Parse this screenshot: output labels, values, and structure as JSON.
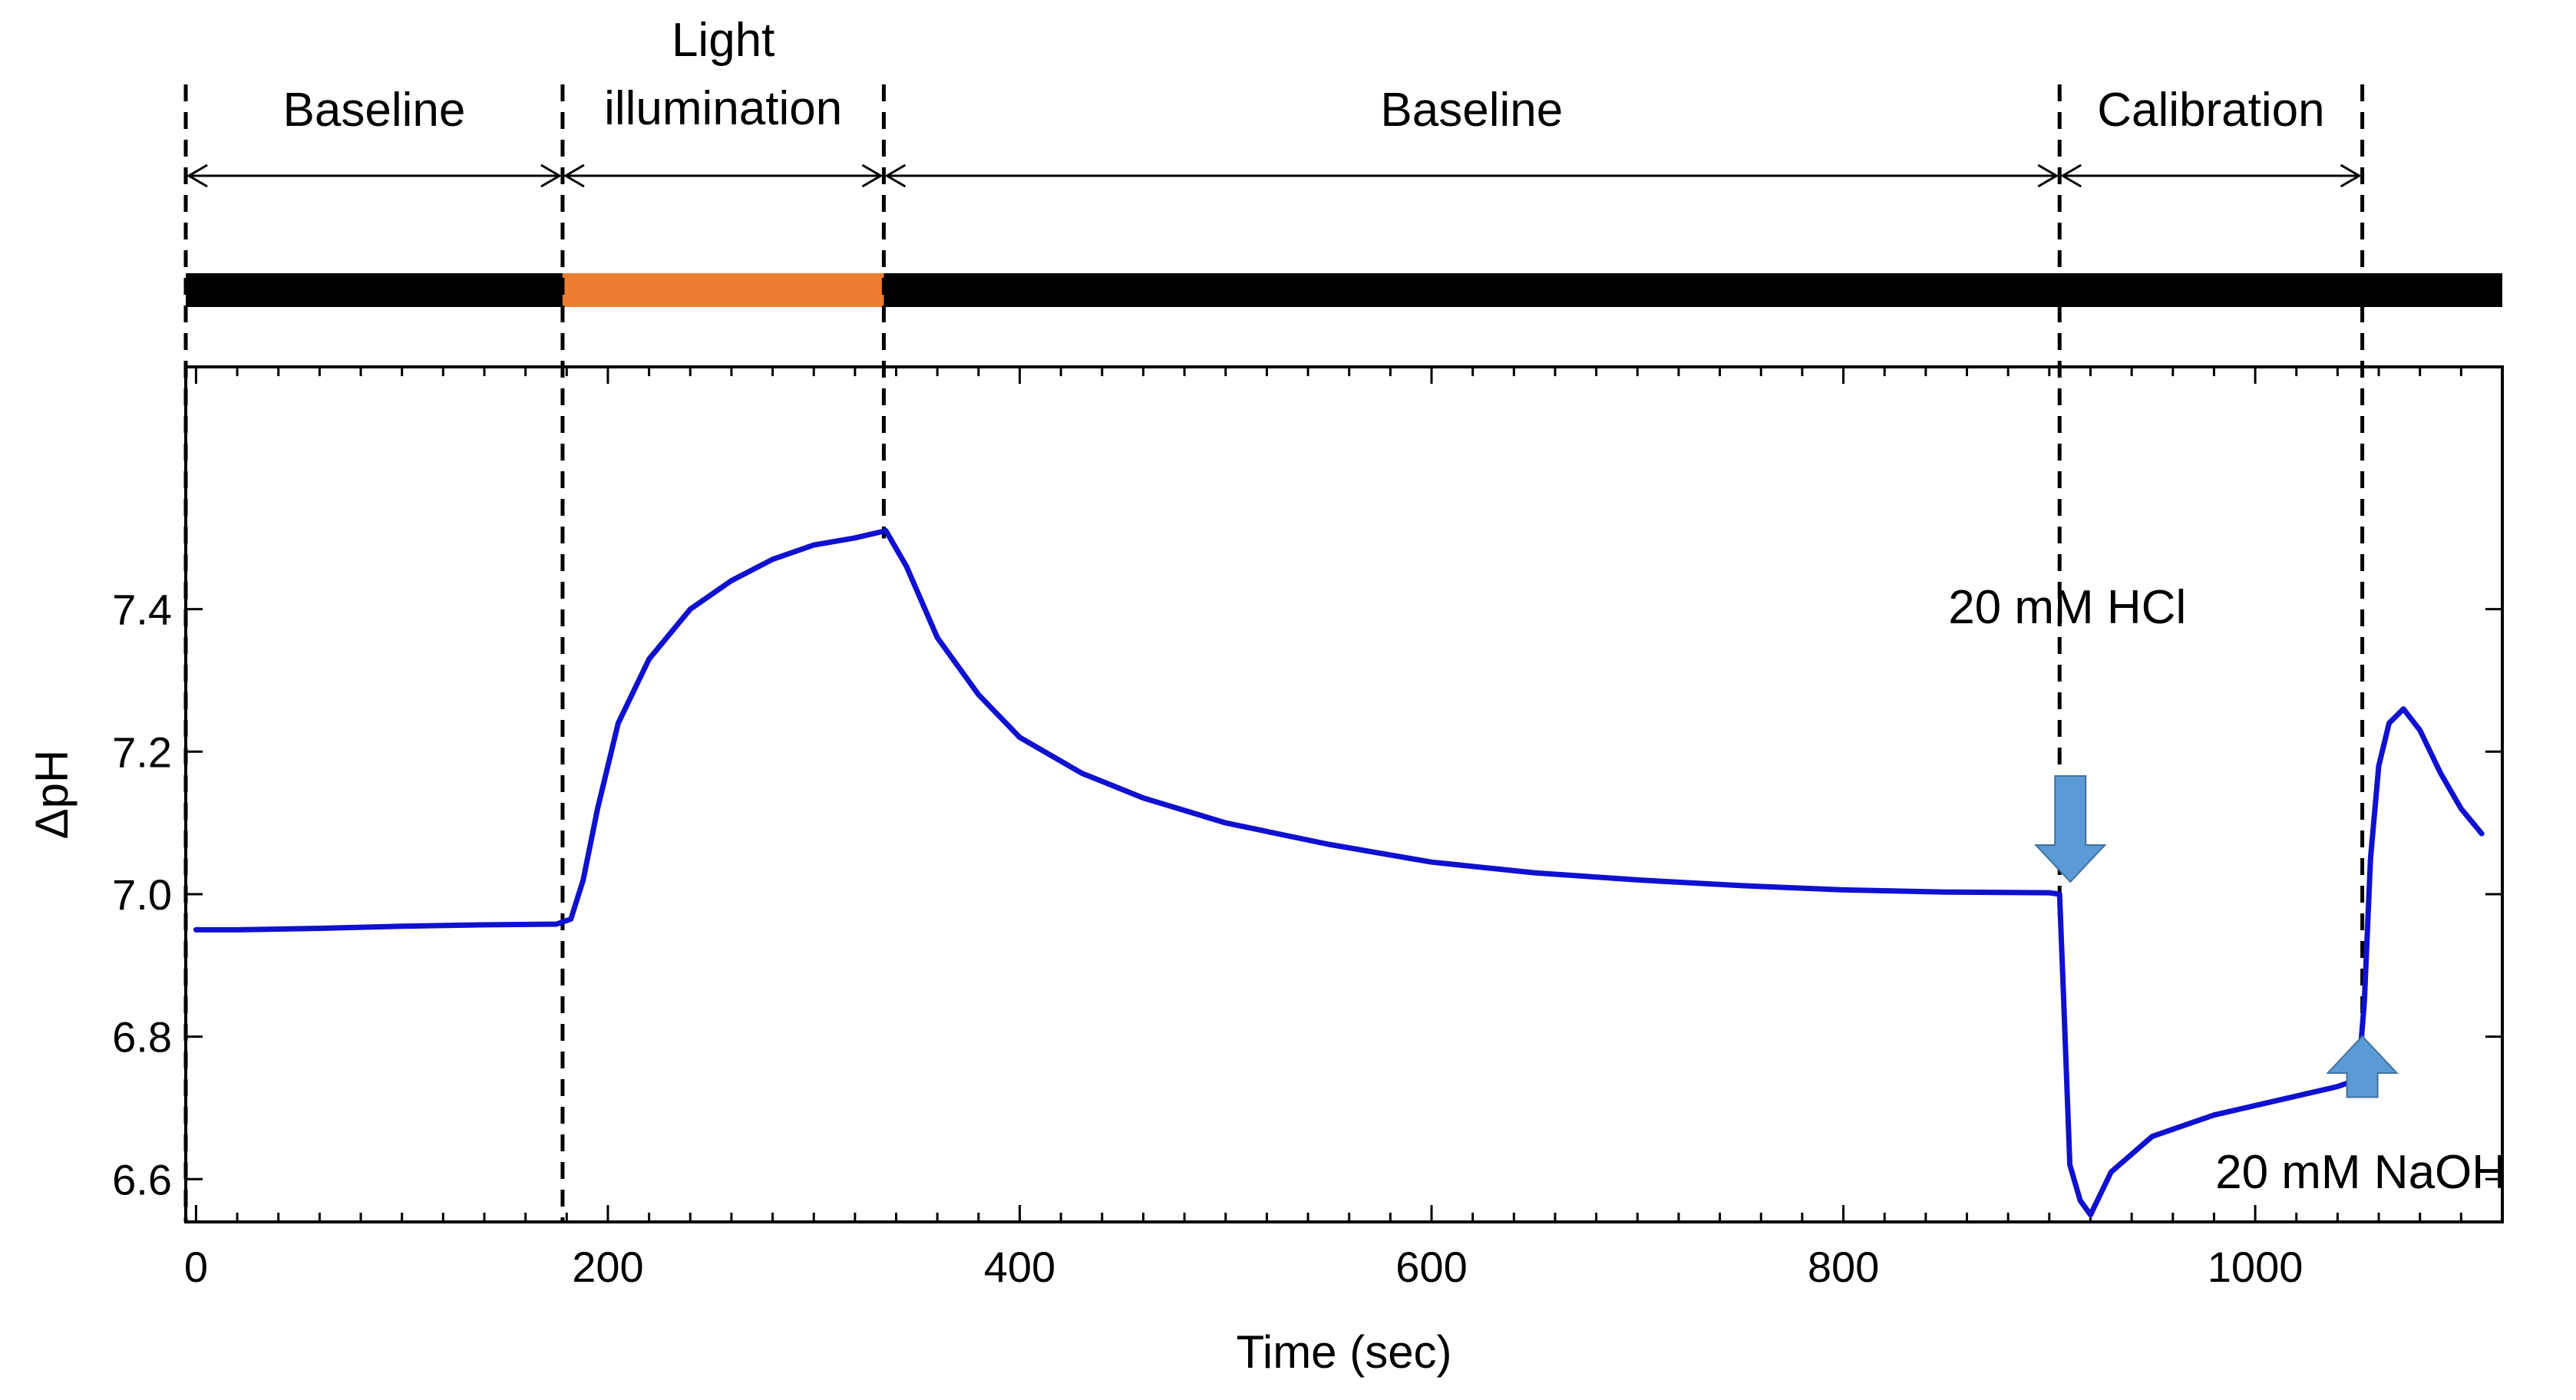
{
  "chart_data": {
    "type": "line",
    "xlabel": "Time (sec)",
    "ylabel": "ΔpH",
    "xlim": [
      -5,
      1120
    ],
    "ylim": [
      6.54,
      7.74
    ],
    "xticks": [
      0,
      200,
      400,
      600,
      800,
      1000
    ],
    "xtick_labels": [
      "0",
      "200",
      "400",
      "600",
      "800",
      "1000"
    ],
    "yticks": [
      6.6,
      6.8,
      7.0,
      7.2,
      7.4
    ],
    "ytick_labels": [
      "6.6",
      "6.8",
      "7.0",
      "7.2",
      "7.4"
    ],
    "grid": false,
    "legend": "none",
    "line_color": "#1010d0",
    "series": [
      {
        "x": [
          0,
          20,
          60,
          100,
          140,
          175,
          182,
          188,
          195,
          205,
          220,
          240,
          260,
          280,
          300,
          320,
          335,
          345,
          360,
          380,
          400,
          430,
          460,
          500,
          550,
          600,
          650,
          700,
          750,
          800,
          850,
          900,
          905,
          907,
          910,
          915,
          920,
          930,
          950,
          980,
          1010,
          1040,
          1050,
          1053,
          1056,
          1060,
          1065,
          1072,
          1080,
          1090,
          1100,
          1110
        ],
        "y": [
          6.95,
          6.95,
          6.952,
          6.955,
          6.957,
          6.958,
          6.965,
          7.02,
          7.12,
          7.24,
          7.33,
          7.4,
          7.44,
          7.47,
          7.49,
          7.5,
          7.51,
          7.46,
          7.36,
          7.28,
          7.22,
          7.17,
          7.135,
          7.1,
          7.07,
          7.045,
          7.03,
          7.02,
          7.012,
          7.006,
          7.003,
          7.002,
          7.0,
          6.85,
          6.62,
          6.57,
          6.55,
          6.61,
          6.66,
          6.69,
          6.71,
          6.73,
          6.74,
          6.85,
          7.05,
          7.18,
          7.24,
          7.26,
          7.23,
          7.17,
          7.12,
          7.085
        ]
      }
    ],
    "phases": [
      {
        "label": "Baseline",
        "x_start": -5,
        "x_end": 178
      },
      {
        "label_line1": "Light",
        "label_line2": "illumination",
        "x_start": 178,
        "x_end": 334
      },
      {
        "label": "Baseline",
        "x_start": 334,
        "x_end": 905
      },
      {
        "label": "Calibration",
        "x_start": 905,
        "x_end": 1052
      }
    ],
    "phase_bar": [
      {
        "x_start": -5,
        "x_end": 178,
        "color": "#000000"
      },
      {
        "x_start": 178,
        "x_end": 334,
        "color": "#ed7d31"
      },
      {
        "x_start": 334,
        "x_end": 1120,
        "color": "#000000"
      }
    ],
    "divider_x": [
      -5,
      178,
      334,
      905,
      1052
    ],
    "annotations": [
      {
        "text": "20 mM HCl",
        "x": 905,
        "y": 7.0,
        "direction": "down",
        "color": "#5b9bd5"
      },
      {
        "text": "20 mM NaOH",
        "x": 1052,
        "y": 6.74,
        "direction": "up",
        "color": "#5b9bd5"
      }
    ]
  }
}
